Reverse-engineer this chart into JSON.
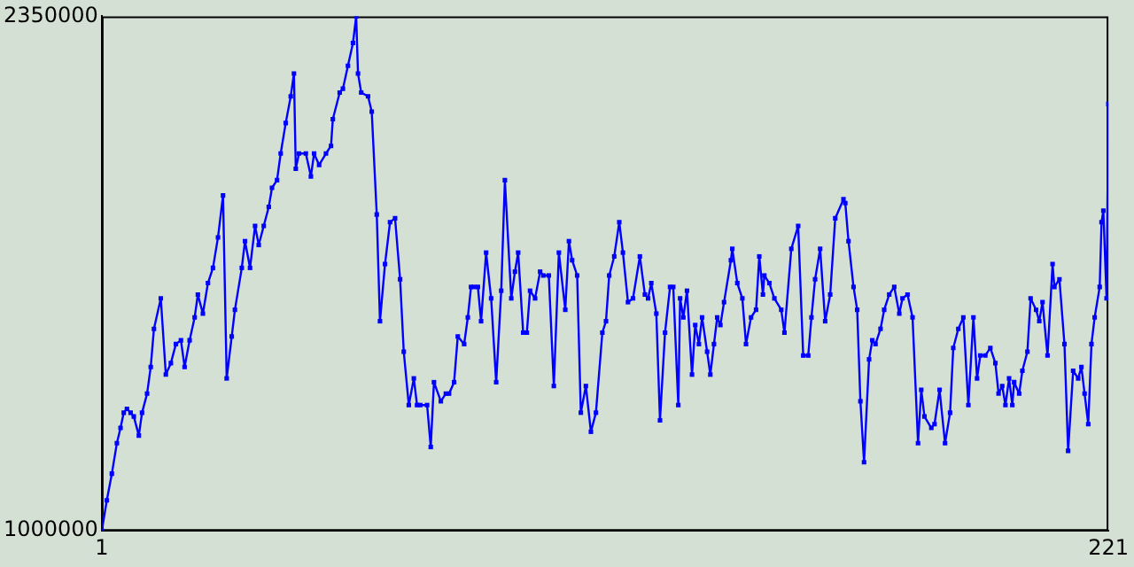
{
  "chart_data": {
    "type": "line",
    "marker": "square",
    "grid": false,
    "legend": false,
    "xlim": [
      1,
      221
    ],
    "xticks": [
      1,
      221
    ],
    "ylim": [
      1000000,
      2350000
    ],
    "yticks": [
      1000000,
      2350000
    ],
    "x": [
      1,
      2.1,
      3.2,
      4.3,
      5.1,
      5.8,
      6.5,
      7.3,
      8.0,
      9.1,
      9.8,
      10.9,
      11.7,
      12.4,
      13.9,
      15.0,
      16.1,
      17.2,
      18.3,
      19.1,
      20.2,
      21.3,
      22.0,
      23.1,
      24.2,
      25.3,
      26.4,
      27.5,
      28.3,
      29.4,
      30.1,
      31.6,
      32.3,
      33.4,
      34.5,
      35.3,
      36.4,
      37.5,
      38.2,
      39.3,
      40.1,
      41.2,
      42.3,
      43.0,
      43.4,
      44.1,
      45.6,
      46.7,
      47.4,
      48.5,
      50.0,
      51.1,
      51.5,
      53.0,
      53.7,
      54.8,
      55.9,
      56.6,
      57.0,
      57.7,
      59.2,
      60.0,
      61.1,
      61.8,
      62.9,
      64.0,
      65.1,
      66.2,
      67.0,
      68.1,
      69.2,
      69.9,
      70.6,
      72.1,
      72.9,
      73.6,
      75.1,
      76.2,
      76.9,
      78.0,
      78.8,
      80.2,
      81.0,
      81.7,
      82.4,
      83.2,
      83.9,
      85.0,
      86.1,
      87.2,
      88.3,
      89.1,
      90.5,
      91.3,
      92.0,
      93.1,
      93.9,
      94.6,
      95.7,
      96.8,
      97.5,
      98.7,
      99.8,
      100.9,
      102.3,
      103.1,
      103.8,
      104.9,
      105.7,
      106.8,
      107.9,
      109.0,
      110.4,
      111.2,
      111.9,
      113.0,
      114.1,
      114.9,
      116.0,
      117.1,
      118.6,
      119.7,
      120.4,
      121.1,
      122.2,
      123.0,
      124.1,
      125.2,
      125.9,
      127.0,
      127.4,
      128.1,
      128.9,
      130.0,
      130.7,
      131.5,
      132.2,
      133.3,
      134.0,
      134.8,
      135.5,
      136.2,
      137.0,
      138.5,
      138.8,
      139.9,
      141.0,
      141.8,
      142.9,
      144.0,
      144.7,
      145.5,
      145.8,
      146.9,
      148.0,
      149.5,
      150.2,
      151.7,
      153.2,
      154.3,
      155.4,
      156.1,
      156.9,
      158.0,
      159.1,
      160.2,
      161.3,
      163.1,
      163.5,
      164.2,
      165.3,
      166.1,
      166.8,
      167.6,
      168.7,
      169.4,
      170.1,
      171.2,
      172.0,
      173.1,
      174.2,
      175.3,
      176.0,
      177.1,
      178.2,
      179.4,
      180.1,
      180.8,
      182.3,
      183.0,
      184.1,
      185.3,
      186.4,
      187.1,
      188.2,
      189.3,
      190.4,
      191.5,
      192.3,
      193.0,
      194.1,
      195.2,
      196.3,
      197.0,
      197.8,
      198.5,
      199.3,
      200.0,
      200.4,
      201.5,
      202.2,
      203.3,
      204.0,
      205.2,
      205.9,
      206.6,
      207.7,
      208.8,
      209.2,
      210.3,
      211.4,
      212.2,
      213.3,
      214.4,
      215.1,
      215.8,
      216.6,
      217.3,
      218.0,
      219.1,
      219.5,
      219.9,
      220.6,
      221
    ],
    "series": [
      {
        "color": "#0000ff",
        "values": [
          1000000,
          1080000,
          1150000,
          1230000,
          1270000,
          1310000,
          1320000,
          1310000,
          1300000,
          1250000,
          1310000,
          1360000,
          1430000,
          1530000,
          1610000,
          1410000,
          1440000,
          1490000,
          1500000,
          1430000,
          1500000,
          1560000,
          1620000,
          1570000,
          1650000,
          1690000,
          1770000,
          1880000,
          1400000,
          1510000,
          1580000,
          1690000,
          1760000,
          1690000,
          1800000,
          1750000,
          1800000,
          1850000,
          1900000,
          1920000,
          1990000,
          2070000,
          2140000,
          2200000,
          1950000,
          1990000,
          1990000,
          1930000,
          1990000,
          1960000,
          1990000,
          2010000,
          2080000,
          2150000,
          2160000,
          2220000,
          2280000,
          2350000,
          2200000,
          2150000,
          2140000,
          2100000,
          1830000,
          1550000,
          1700000,
          1810000,
          1820000,
          1660000,
          1470000,
          1330000,
          1400000,
          1330000,
          1330000,
          1330000,
          1220000,
          1390000,
          1340000,
          1360000,
          1360000,
          1390000,
          1510000,
          1490000,
          1560000,
          1640000,
          1640000,
          1640000,
          1550000,
          1730000,
          1610000,
          1390000,
          1630000,
          1920000,
          1610000,
          1680000,
          1730000,
          1520000,
          1520000,
          1630000,
          1610000,
          1680000,
          1670000,
          1670000,
          1380000,
          1730000,
          1580000,
          1760000,
          1710000,
          1670000,
          1310000,
          1380000,
          1260000,
          1310000,
          1520000,
          1550000,
          1670000,
          1720000,
          1810000,
          1730000,
          1600000,
          1610000,
          1720000,
          1620000,
          1610000,
          1650000,
          1570000,
          1290000,
          1520000,
          1640000,
          1640000,
          1330000,
          1610000,
          1560000,
          1630000,
          1410000,
          1540000,
          1490000,
          1560000,
          1470000,
          1410000,
          1490000,
          1560000,
          1540000,
          1600000,
          1710000,
          1740000,
          1650000,
          1610000,
          1490000,
          1560000,
          1580000,
          1720000,
          1620000,
          1670000,
          1650000,
          1610000,
          1580000,
          1520000,
          1740000,
          1800000,
          1460000,
          1460000,
          1560000,
          1660000,
          1740000,
          1550000,
          1620000,
          1820000,
          1870000,
          1860000,
          1760000,
          1640000,
          1580000,
          1340000,
          1180000,
          1450000,
          1500000,
          1490000,
          1530000,
          1580000,
          1620000,
          1640000,
          1570000,
          1610000,
          1620000,
          1560000,
          1230000,
          1370000,
          1300000,
          1270000,
          1280000,
          1370000,
          1230000,
          1310000,
          1480000,
          1530000,
          1560000,
          1330000,
          1560000,
          1400000,
          1460000,
          1460000,
          1480000,
          1440000,
          1360000,
          1380000,
          1330000,
          1400000,
          1330000,
          1390000,
          1360000,
          1420000,
          1470000,
          1610000,
          1580000,
          1550000,
          1600000,
          1460000,
          1700000,
          1640000,
          1660000,
          1490000,
          1210000,
          1420000,
          1400000,
          1430000,
          1360000,
          1280000,
          1490000,
          1560000,
          1640000,
          1810000,
          1840000,
          1610000,
          2120000
        ]
      }
    ]
  }
}
